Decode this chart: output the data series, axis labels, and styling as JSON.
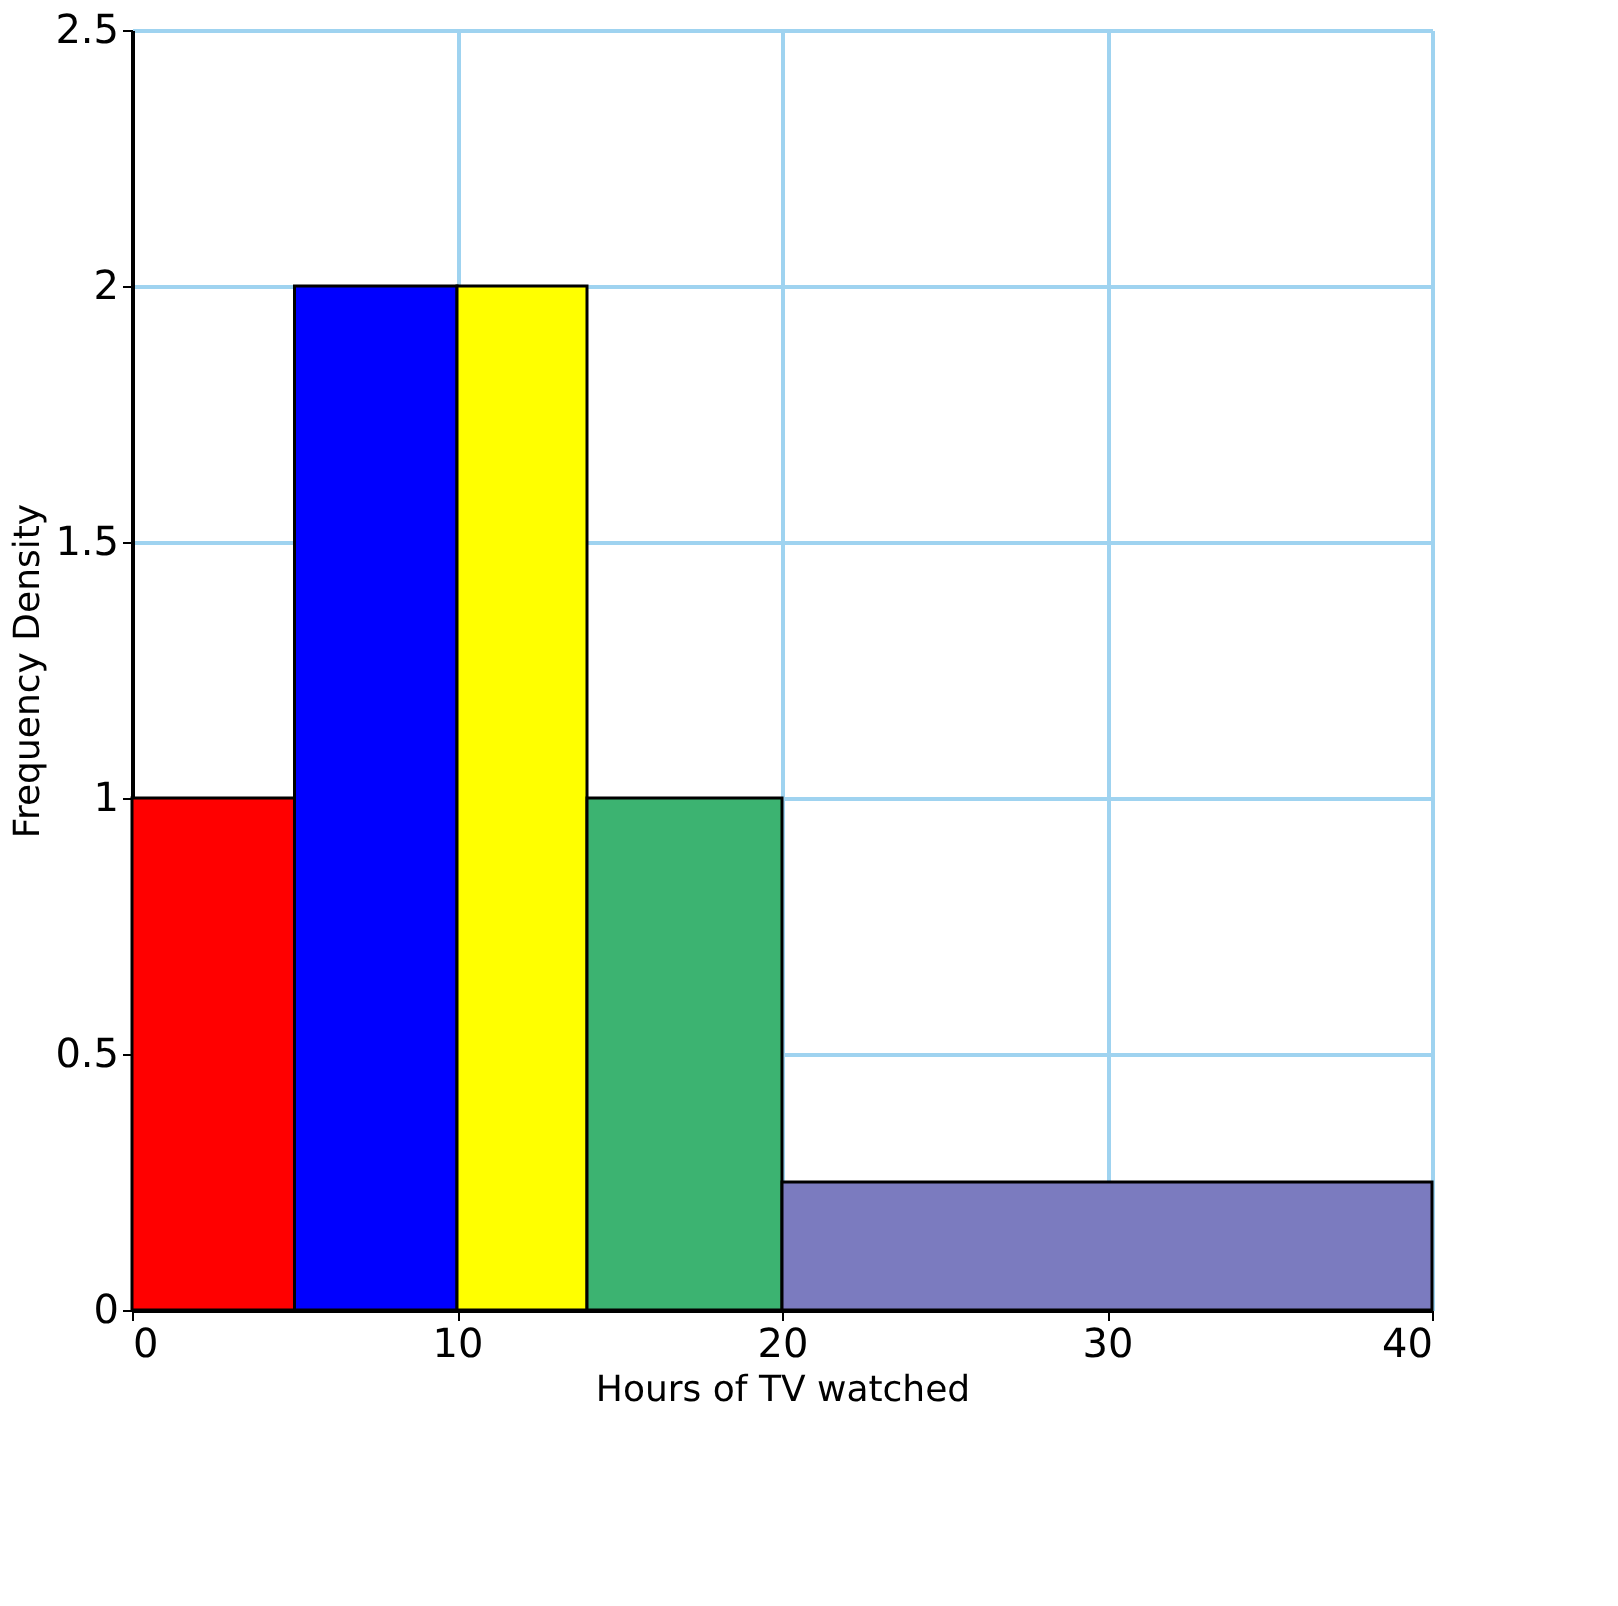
{
  "chart_data": {
    "type": "histogram",
    "xlabel": "Hours of TV watched",
    "ylabel": "Frequency Density",
    "bins": [
      0,
      5,
      10,
      14,
      20,
      40
    ],
    "values": [
      1,
      2,
      2,
      1,
      0.25
    ],
    "colors": [
      "#ff0000",
      "#0000ff",
      "#ffff00",
      "#3cb371",
      "#7b7bbf"
    ],
    "xlim": [
      0,
      40
    ],
    "xticks": [
      0,
      10,
      20,
      30,
      40
    ],
    "ylim": [
      0,
      2.5
    ],
    "yticks": [
      0,
      0.5,
      1,
      1.5,
      2,
      2.5
    ],
    "grid": true
  }
}
